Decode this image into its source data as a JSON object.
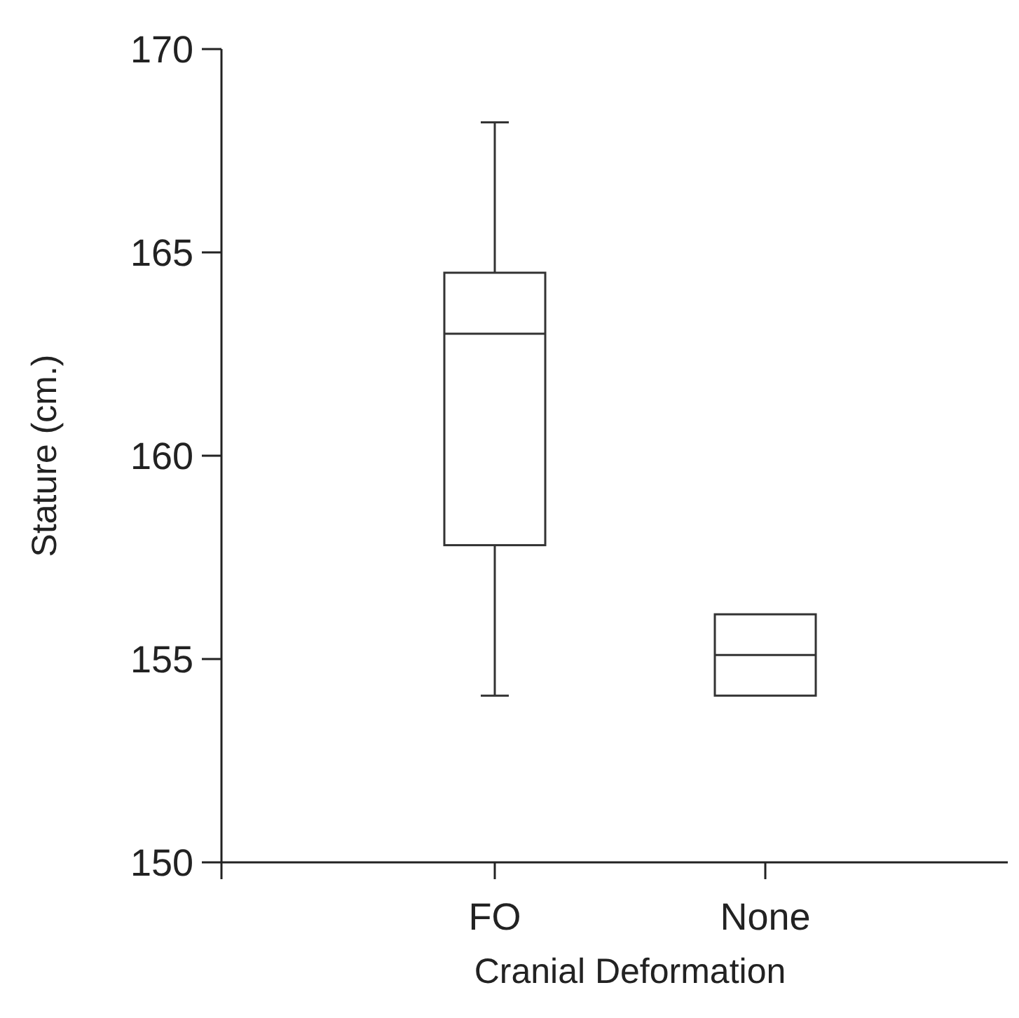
{
  "chart_data": {
    "type": "box",
    "xlabel": "Cranial Deformation",
    "ylabel": "Stature (cm.)",
    "categories": [
      "FO",
      "None"
    ],
    "boxes": [
      {
        "low": 154.1,
        "q1": 157.8,
        "median": 163.0,
        "q3": 164.5,
        "high": 168.2
      },
      {
        "low": 154.1,
        "q1": 154.1,
        "median": 155.1,
        "q3": 156.1,
        "high": 156.1
      }
    ],
    "color": "#333333",
    "ylim": [
      150,
      170
    ],
    "yticks": [
      150,
      155,
      160,
      165,
      170
    ],
    "grid": false
  }
}
